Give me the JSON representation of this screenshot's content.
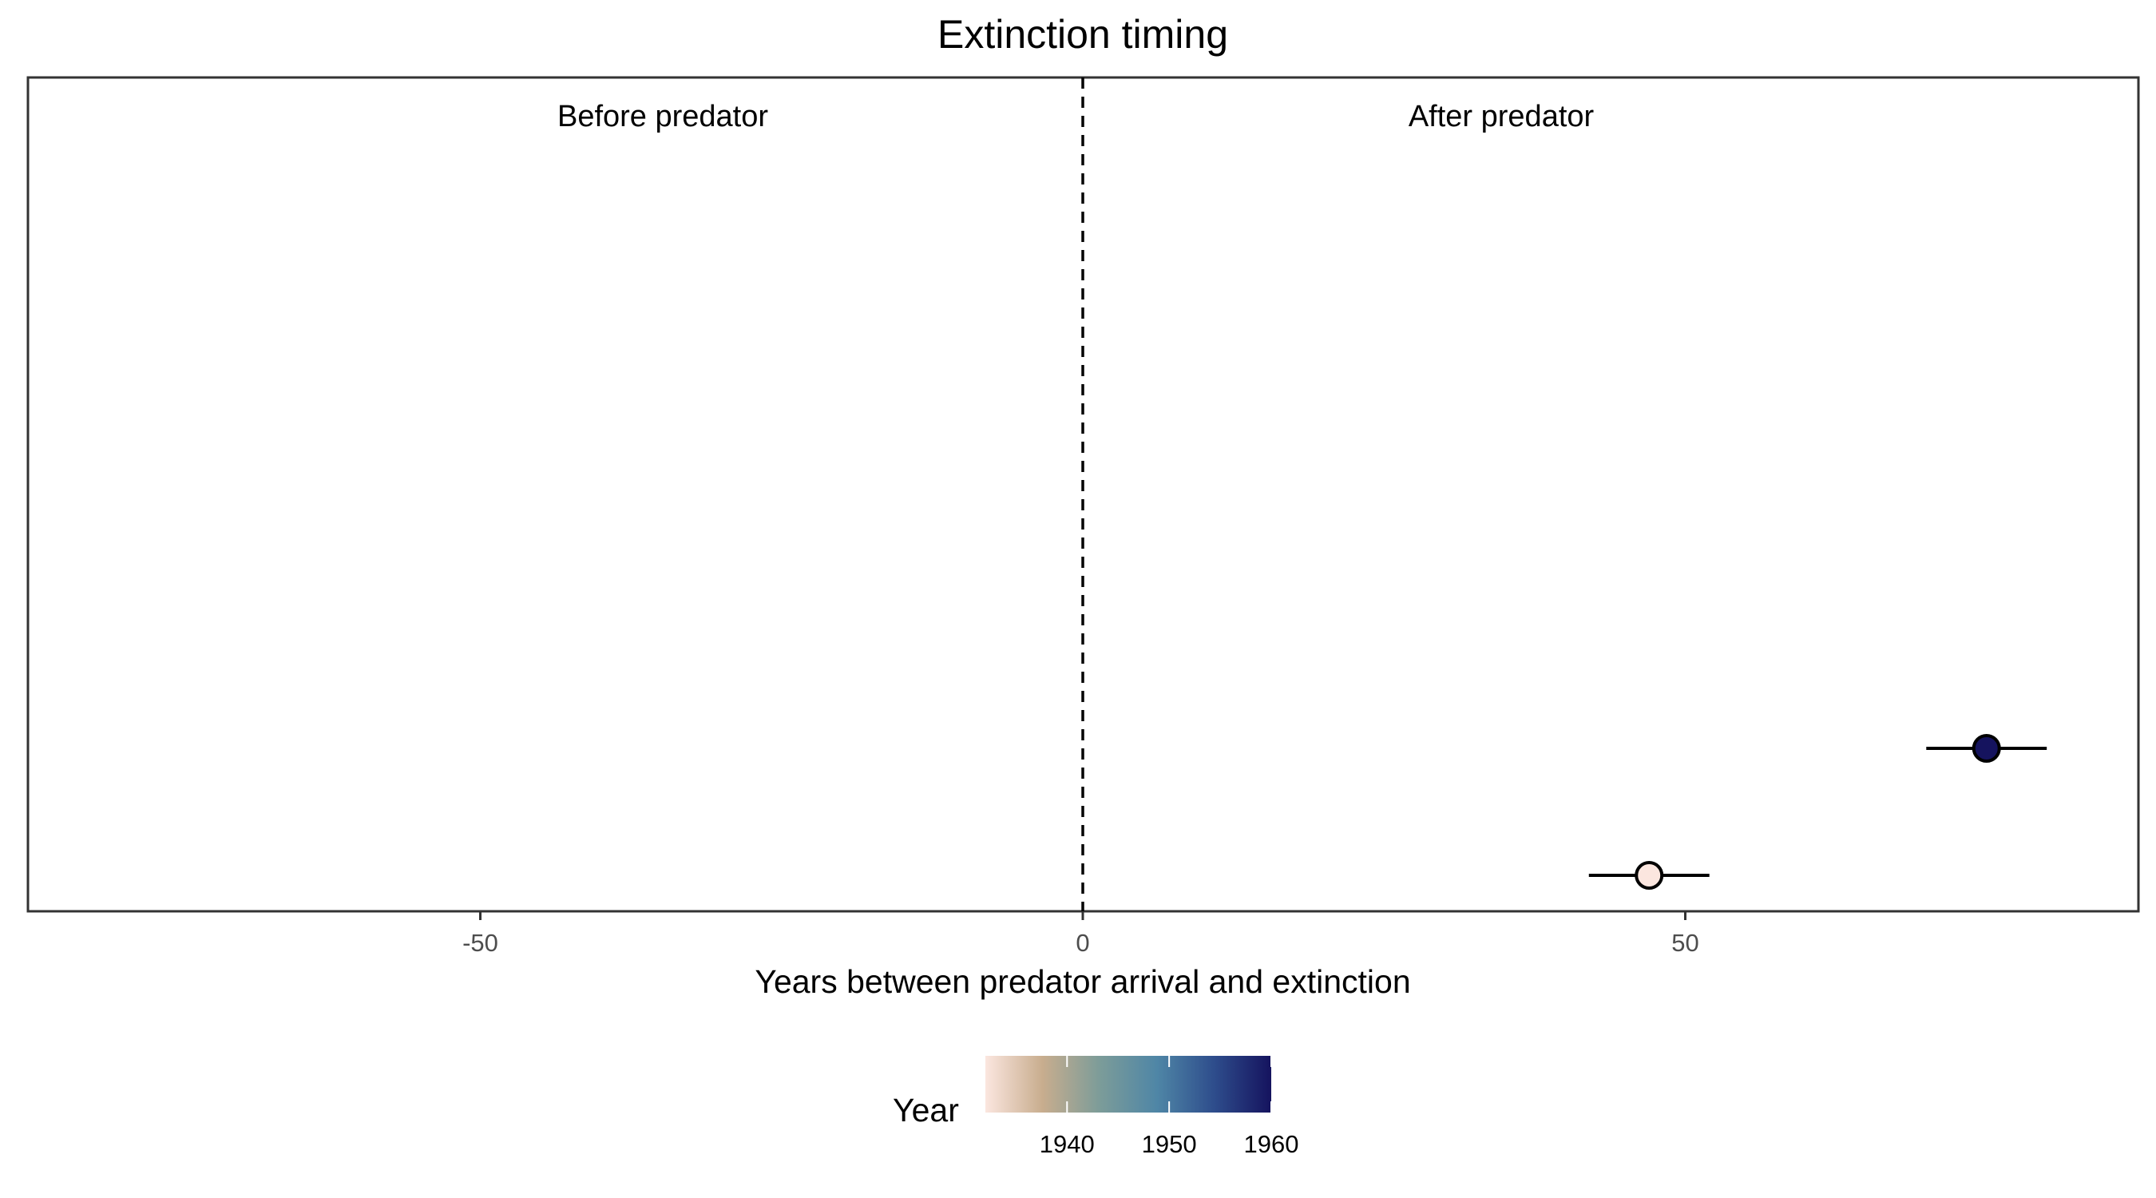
{
  "chart_data": {
    "type": "scatter",
    "title": "Extinction timing",
    "xlabel": "Years between predator arrival and extinction",
    "ylabel": "",
    "xlim": [
      -88,
      88
    ],
    "xticks": [
      -50,
      0,
      50
    ],
    "xtick_labels": [
      "-50",
      "0",
      "50"
    ],
    "reference_line": {
      "x": 0,
      "style": "dashed"
    },
    "annotations": [
      "Before predator",
      "After predator"
    ],
    "grid": false,
    "points": [
      {
        "x": 75,
        "xmin": 70,
        "xmax": 80,
        "year": 1960,
        "row": 2
      },
      {
        "x": 47,
        "xmin": 42,
        "xmax": 52,
        "year": 1932,
        "row": 1
      }
    ],
    "legend": {
      "title": "Year",
      "placement": "bottom",
      "range": [
        1932,
        1960
      ],
      "ticks": [
        1940,
        1950,
        1960
      ],
      "tick_labels": [
        "1940",
        "1950",
        "1960"
      ],
      "colors": [
        "#fbe6df",
        "#c8ad8e",
        "#7c9c99",
        "#4f86a6",
        "#2e4d8c",
        "#15135e"
      ]
    }
  }
}
